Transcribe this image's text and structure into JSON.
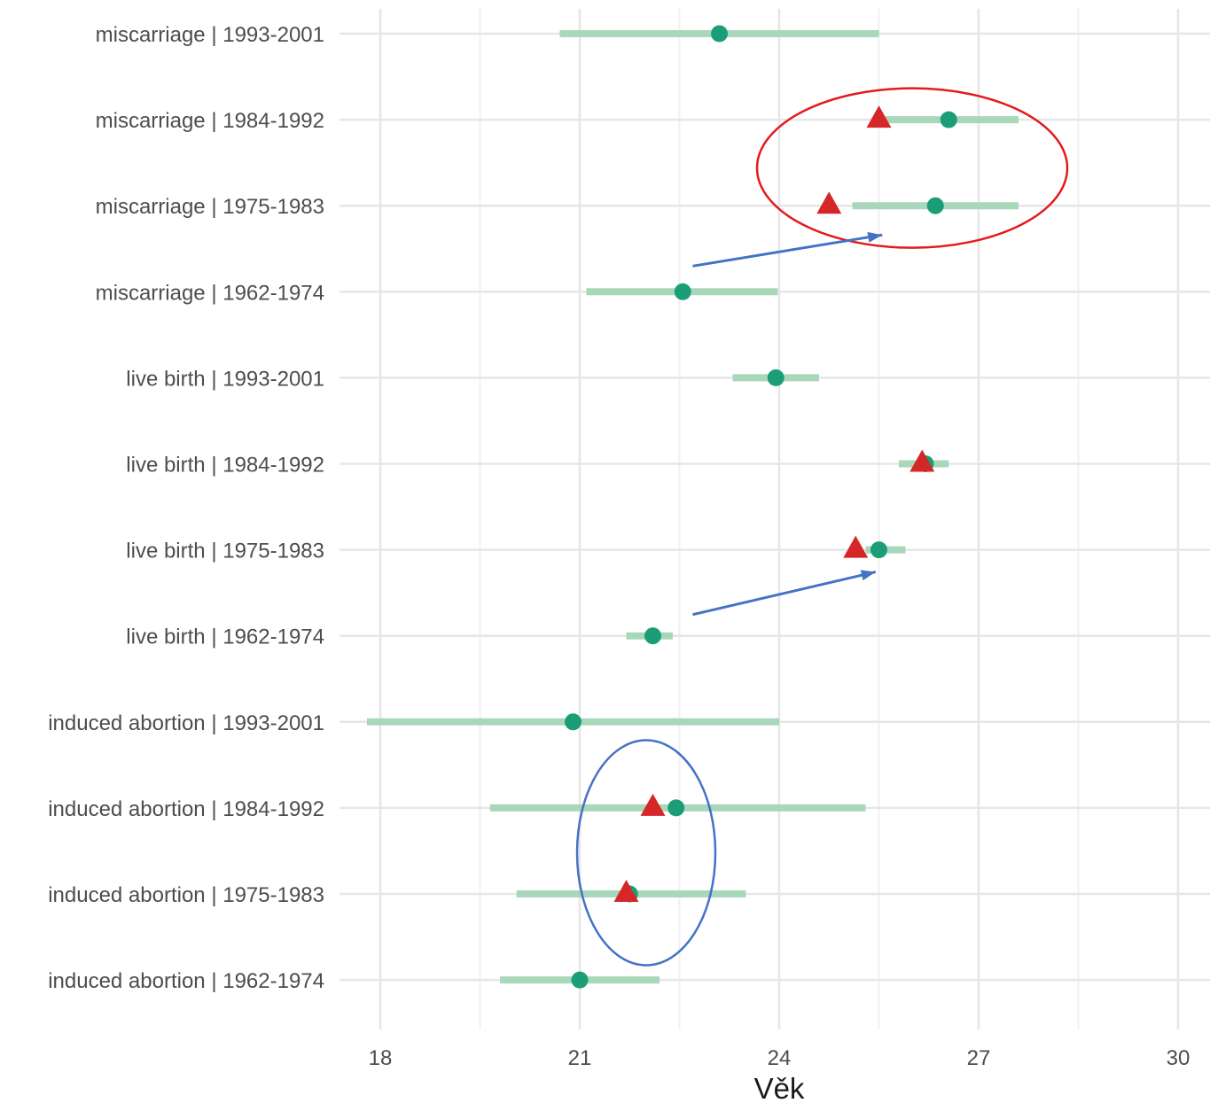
{
  "chart_data": {
    "type": "dot-interval",
    "xlabel": "Věk",
    "ylabel": "",
    "xlim": [
      17.8,
      30.2
    ],
    "xticks": [
      18,
      21,
      24,
      27,
      30
    ],
    "grid": true,
    "colors": {
      "interval": "#a8d8b9",
      "point": "#1b9e77",
      "triangle": "#d62728",
      "ellipse_red": "#e41a1c",
      "ellipse_blue": "#4472c4",
      "arrow": "#4472c4"
    },
    "categories": [
      "miscarriage | 1993-2001",
      "miscarriage | 1984-1992",
      "miscarriage | 1975-1983",
      "miscarriage | 1962-1974",
      "live birth | 1993-2001",
      "live birth | 1984-1992",
      "live birth | 1975-1983",
      "live birth | 1962-1974",
      "induced abortion | 1993-2001",
      "induced abortion | 1984-1992",
      "induced abortion | 1975-1983",
      "induced abortion | 1962-1974"
    ],
    "intervals": [
      [
        20.7,
        25.5
      ],
      [
        25.6,
        27.6
      ],
      [
        25.1,
        27.6
      ],
      [
        21.1,
        23.98
      ],
      [
        23.3,
        24.6
      ],
      [
        25.8,
        26.55
      ],
      [
        25.3,
        25.9
      ],
      [
        21.7,
        22.4
      ],
      [
        17.8,
        24.0
      ],
      [
        19.65,
        25.3
      ],
      [
        20.05,
        23.5
      ],
      [
        19.8,
        22.2
      ]
    ],
    "points": [
      23.1,
      26.55,
      26.35,
      22.55,
      23.95,
      26.2,
      25.5,
      22.1,
      20.9,
      22.45,
      21.75,
      21.0
    ],
    "triangles": [
      {
        "category": "miscarriage | 1984-1992",
        "value": 25.5
      },
      {
        "category": "miscarriage | 1975-1983",
        "value": 24.75
      },
      {
        "category": "live birth | 1984-1992",
        "value": 26.15
      },
      {
        "category": "live birth | 1975-1983",
        "value": 25.15
      },
      {
        "category": "induced abortion | 1984-1992",
        "value": 22.1
      },
      {
        "category": "induced abortion | 1975-1983",
        "value": 21.7
      }
    ]
  }
}
